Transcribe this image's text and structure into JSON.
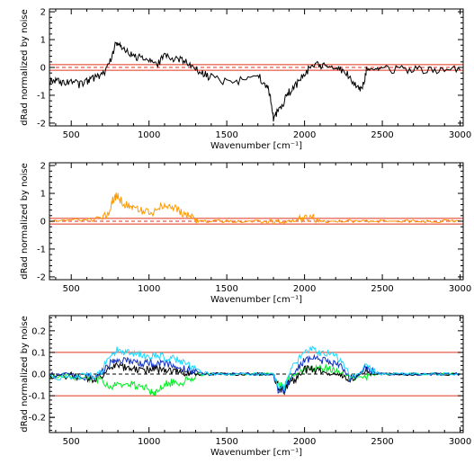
{
  "chart_data": [
    {
      "type": "line",
      "panel": "top",
      "xlabel": "Wavenumber [cm⁻¹]",
      "ylabel": "dRad normalized by noise",
      "xlim": [
        360,
        3020
      ],
      "ylim": [
        -2.1,
        2.1
      ],
      "xticks": [
        500,
        1000,
        1500,
        2000,
        2500,
        3000
      ],
      "yticks": [
        -2,
        -1,
        0,
        1,
        2
      ],
      "ytick_labels": [
        "-2",
        "-1",
        "0",
        "1",
        "2"
      ],
      "grid": false,
      "legend": "none",
      "hlines": [
        {
          "y": 0.1,
          "color": "#e0301e",
          "style": "solid"
        },
        {
          "y": -0.1,
          "color": "#e0301e",
          "style": "solid"
        },
        {
          "y": 0.0,
          "color": "#e0301e",
          "style": "dashed"
        }
      ],
      "series": [
        {
          "color": "#000000",
          "x": [
            360,
            400,
            450,
            500,
            550,
            600,
            640,
            680,
            720,
            760,
            790,
            820,
            860,
            900,
            950,
            1000,
            1050,
            1100,
            1150,
            1200,
            1250,
            1300,
            1350,
            1400,
            1500,
            1600,
            1700,
            1750,
            1780,
            1800,
            1830,
            1870,
            1900,
            1950,
            2000,
            2050,
            2100,
            2150,
            2200,
            2250,
            2300,
            2350,
            2380,
            2400,
            2450,
            2500,
            2600,
            2700,
            2800,
            2900,
            3000
          ],
          "y": [
            -0.5,
            -0.45,
            -0.55,
            -0.5,
            -0.6,
            -0.5,
            -0.4,
            -0.3,
            -0.1,
            0.4,
            0.9,
            0.75,
            0.55,
            0.45,
            0.3,
            0.25,
            0.05,
            0.45,
            0.3,
            0.25,
            0.2,
            -0.05,
            -0.25,
            -0.35,
            -0.55,
            -0.45,
            -0.3,
            -0.6,
            -1.0,
            -1.8,
            -1.6,
            -1.2,
            -0.9,
            -0.6,
            -0.2,
            0.05,
            0.1,
            0.05,
            -0.05,
            -0.1,
            -0.45,
            -0.75,
            -0.6,
            -0.05,
            -0.05,
            -0.08,
            -0.07,
            -0.08,
            -0.08,
            -0.08,
            -0.09
          ]
        }
      ]
    },
    {
      "type": "line",
      "panel": "middle",
      "xlabel": "Wavenumber [cm⁻¹]",
      "ylabel": "dRad normalized by noise",
      "xlim": [
        360,
        3020
      ],
      "ylim": [
        -2.1,
        2.1
      ],
      "xticks": [
        500,
        1000,
        1500,
        2000,
        2500,
        3000
      ],
      "yticks": [
        -2,
        -1,
        0,
        1,
        2
      ],
      "ytick_labels": [
        "-2",
        "-1",
        "0",
        "1",
        "2"
      ],
      "grid": false,
      "legend": "none",
      "hlines": [
        {
          "y": 0.1,
          "color": "#e0301e",
          "style": "solid"
        },
        {
          "y": -0.1,
          "color": "#e0301e",
          "style": "solid"
        },
        {
          "y": 0.0,
          "color": "#e0301e",
          "style": "dashed"
        }
      ],
      "series": [
        {
          "color": "#ff9a00",
          "x": [
            360,
            500,
            600,
            700,
            740,
            770,
            800,
            830,
            870,
            900,
            950,
            1000,
            1050,
            1100,
            1150,
            1200,
            1250,
            1300,
            1320,
            1400,
            1500,
            1600,
            1700,
            1800,
            1850,
            1900,
            1950,
            2000,
            2050,
            2080,
            2100,
            2200,
            2300,
            2400,
            2500,
            2600,
            2700,
            2800,
            2900,
            3000
          ],
          "y": [
            0.0,
            0.05,
            0.05,
            0.1,
            0.3,
            0.8,
            0.95,
            0.6,
            0.6,
            0.5,
            0.4,
            0.3,
            0.35,
            0.65,
            0.5,
            0.35,
            0.2,
            0.1,
            0.0,
            0.0,
            0.0,
            0.0,
            0.0,
            -0.1,
            -0.05,
            0.0,
            0.05,
            0.1,
            0.15,
            0.05,
            0.0,
            0.0,
            0.0,
            0.0,
            0.0,
            0.0,
            0.0,
            0.0,
            0.0,
            0.0
          ]
        }
      ]
    },
    {
      "type": "line",
      "panel": "bottom",
      "xlabel": "Wavenumber [cm⁻¹]",
      "ylabel": "dRad normalized by noise",
      "xlim": [
        360,
        3020
      ],
      "ylim": [
        -0.27,
        0.27
      ],
      "xticks": [
        500,
        1000,
        1500,
        2000,
        2500,
        3000
      ],
      "yticks": [
        -0.2,
        -0.1,
        0.0,
        0.1,
        0.2
      ],
      "ytick_labels": [
        "-0.2",
        "-0.1",
        "0.0",
        "0.1",
        "0.2"
      ],
      "grid": false,
      "legend": "none",
      "hlines": [
        {
          "y": 0.1,
          "color": "#e0301e",
          "style": "solid"
        },
        {
          "y": -0.1,
          "color": "#e0301e",
          "style": "solid"
        },
        {
          "y": 0.0,
          "color": "#000000",
          "style": "dashed"
        }
      ],
      "series": [
        {
          "color": "#00ee22",
          "x": [
            360,
            500,
            600,
            650,
            700,
            760,
            800,
            850,
            900,
            950,
            1000,
            1030,
            1060,
            1100,
            1150,
            1200,
            1250,
            1300,
            1400,
            1500,
            1600,
            1700,
            1800,
            1830,
            1870,
            1900,
            1950,
            2000,
            2050,
            2100,
            2150,
            2200,
            2250,
            2300,
            2400,
            2450,
            2500,
            2600,
            2700,
            2800,
            2900,
            3000
          ],
          "y": [
            -0.01,
            -0.01,
            -0.02,
            -0.02,
            -0.03,
            -0.06,
            -0.05,
            -0.05,
            -0.05,
            -0.06,
            -0.07,
            -0.09,
            -0.08,
            -0.05,
            -0.04,
            -0.04,
            -0.03,
            -0.01,
            0.0,
            0.0,
            0.0,
            0.0,
            0.0,
            -0.05,
            -0.06,
            -0.02,
            0.0,
            0.02,
            0.03,
            0.03,
            0.02,
            0.02,
            0.0,
            -0.02,
            -0.01,
            0.0,
            0.0,
            0.0,
            0.0,
            0.0,
            0.0,
            0.0
          ]
        },
        {
          "color": "#000000",
          "x": [
            360,
            500,
            600,
            650,
            700,
            760,
            800,
            850,
            900,
            950,
            1000,
            1050,
            1100,
            1150,
            1200,
            1250,
            1300,
            1400,
            1500,
            1600,
            1700,
            1800,
            1830,
            1870,
            1900,
            1950,
            2000,
            2050,
            2100,
            2150,
            2200,
            2250,
            2300,
            2400,
            2450,
            2500,
            2600,
            2700,
            2800,
            2900,
            3000
          ],
          "y": [
            -0.01,
            -0.01,
            -0.02,
            -0.02,
            -0.01,
            0.03,
            0.04,
            0.03,
            0.02,
            0.02,
            0.02,
            0.02,
            0.02,
            0.02,
            0.01,
            0.01,
            0.0,
            0.0,
            0.0,
            0.0,
            0.0,
            0.0,
            -0.06,
            -0.08,
            -0.04,
            -0.02,
            0.02,
            0.02,
            0.01,
            0.0,
            0.0,
            -0.01,
            -0.02,
            0.02,
            0.0,
            0.0,
            0.0,
            0.0,
            0.0,
            0.0,
            0.0
          ]
        },
        {
          "color": "#1030c0",
          "x": [
            360,
            500,
            600,
            650,
            700,
            760,
            800,
            850,
            900,
            950,
            1000,
            1050,
            1100,
            1150,
            1200,
            1250,
            1300,
            1400,
            1500,
            1600,
            1700,
            1800,
            1830,
            1870,
            1900,
            1950,
            2000,
            2050,
            2100,
            2150,
            2200,
            2250,
            2300,
            2400,
            2450,
            2500,
            2600,
            2700,
            2800,
            2900,
            3000
          ],
          "y": [
            -0.01,
            -0.01,
            -0.01,
            -0.01,
            0.01,
            0.06,
            0.07,
            0.06,
            0.05,
            0.05,
            0.05,
            0.05,
            0.05,
            0.04,
            0.03,
            0.02,
            0.01,
            0.0,
            0.0,
            0.0,
            0.0,
            0.0,
            -0.07,
            -0.08,
            -0.03,
            0.02,
            0.06,
            0.07,
            0.06,
            0.06,
            0.05,
            0.02,
            -0.03,
            0.03,
            0.01,
            0.0,
            0.0,
            0.0,
            0.0,
            0.0,
            0.0
          ]
        },
        {
          "color": "#18d8ff",
          "x": [
            360,
            500,
            600,
            650,
            700,
            760,
            800,
            850,
            900,
            950,
            1000,
            1050,
            1100,
            1150,
            1200,
            1250,
            1300,
            1400,
            1500,
            1600,
            1700,
            1800,
            1830,
            1870,
            1900,
            1950,
            2000,
            2050,
            2100,
            2150,
            2200,
            2250,
            2300,
            2400,
            2450,
            2500,
            2600,
            2700,
            2800,
            2900,
            3000
          ],
          "y": [
            -0.01,
            -0.01,
            -0.01,
            -0.01,
            0.02,
            0.1,
            0.11,
            0.1,
            0.09,
            0.09,
            0.08,
            0.09,
            0.08,
            0.07,
            0.06,
            0.04,
            0.02,
            0.0,
            0.0,
            0.0,
            0.0,
            0.0,
            -0.05,
            -0.06,
            0.0,
            0.06,
            0.1,
            0.12,
            0.1,
            0.09,
            0.08,
            0.04,
            -0.02,
            0.04,
            0.01,
            0.0,
            0.0,
            0.0,
            0.0,
            0.0,
            0.0
          ]
        }
      ]
    }
  ]
}
